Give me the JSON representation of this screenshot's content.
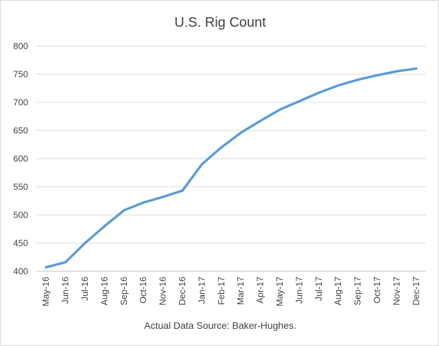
{
  "chart_data": {
    "type": "line",
    "title": "U.S. Rig Count",
    "caption": "Actual Data Source: Baker-Hughes.",
    "xlabel": "",
    "ylabel": "",
    "categories": [
      "May-16",
      "Jun-16",
      "Jul-16",
      "Aug-16",
      "Sep-16",
      "Oct-16",
      "Nov-16",
      "Dec-16",
      "Jan-17",
      "Feb-17",
      "Mar-17",
      "Apr-17",
      "May-17",
      "Jun-17",
      "Jul-17",
      "Aug-17",
      "Sep-17",
      "Oct-17",
      "Nov-17",
      "Dec-17"
    ],
    "series": [
      {
        "values": [
          407,
          416,
          450,
          480,
          508,
          522,
          532,
          543,
          590,
          620,
          646,
          667,
          687,
          702,
          717,
          730,
          740,
          748,
          755,
          760
        ],
        "color": "#5b9bd5"
      }
    ],
    "ylim": [
      400,
      800
    ],
    "yticks": [
      "400",
      "450",
      "500",
      "550",
      "600",
      "650",
      "700",
      "750",
      "800"
    ],
    "grid": true,
    "legend": "none"
  }
}
